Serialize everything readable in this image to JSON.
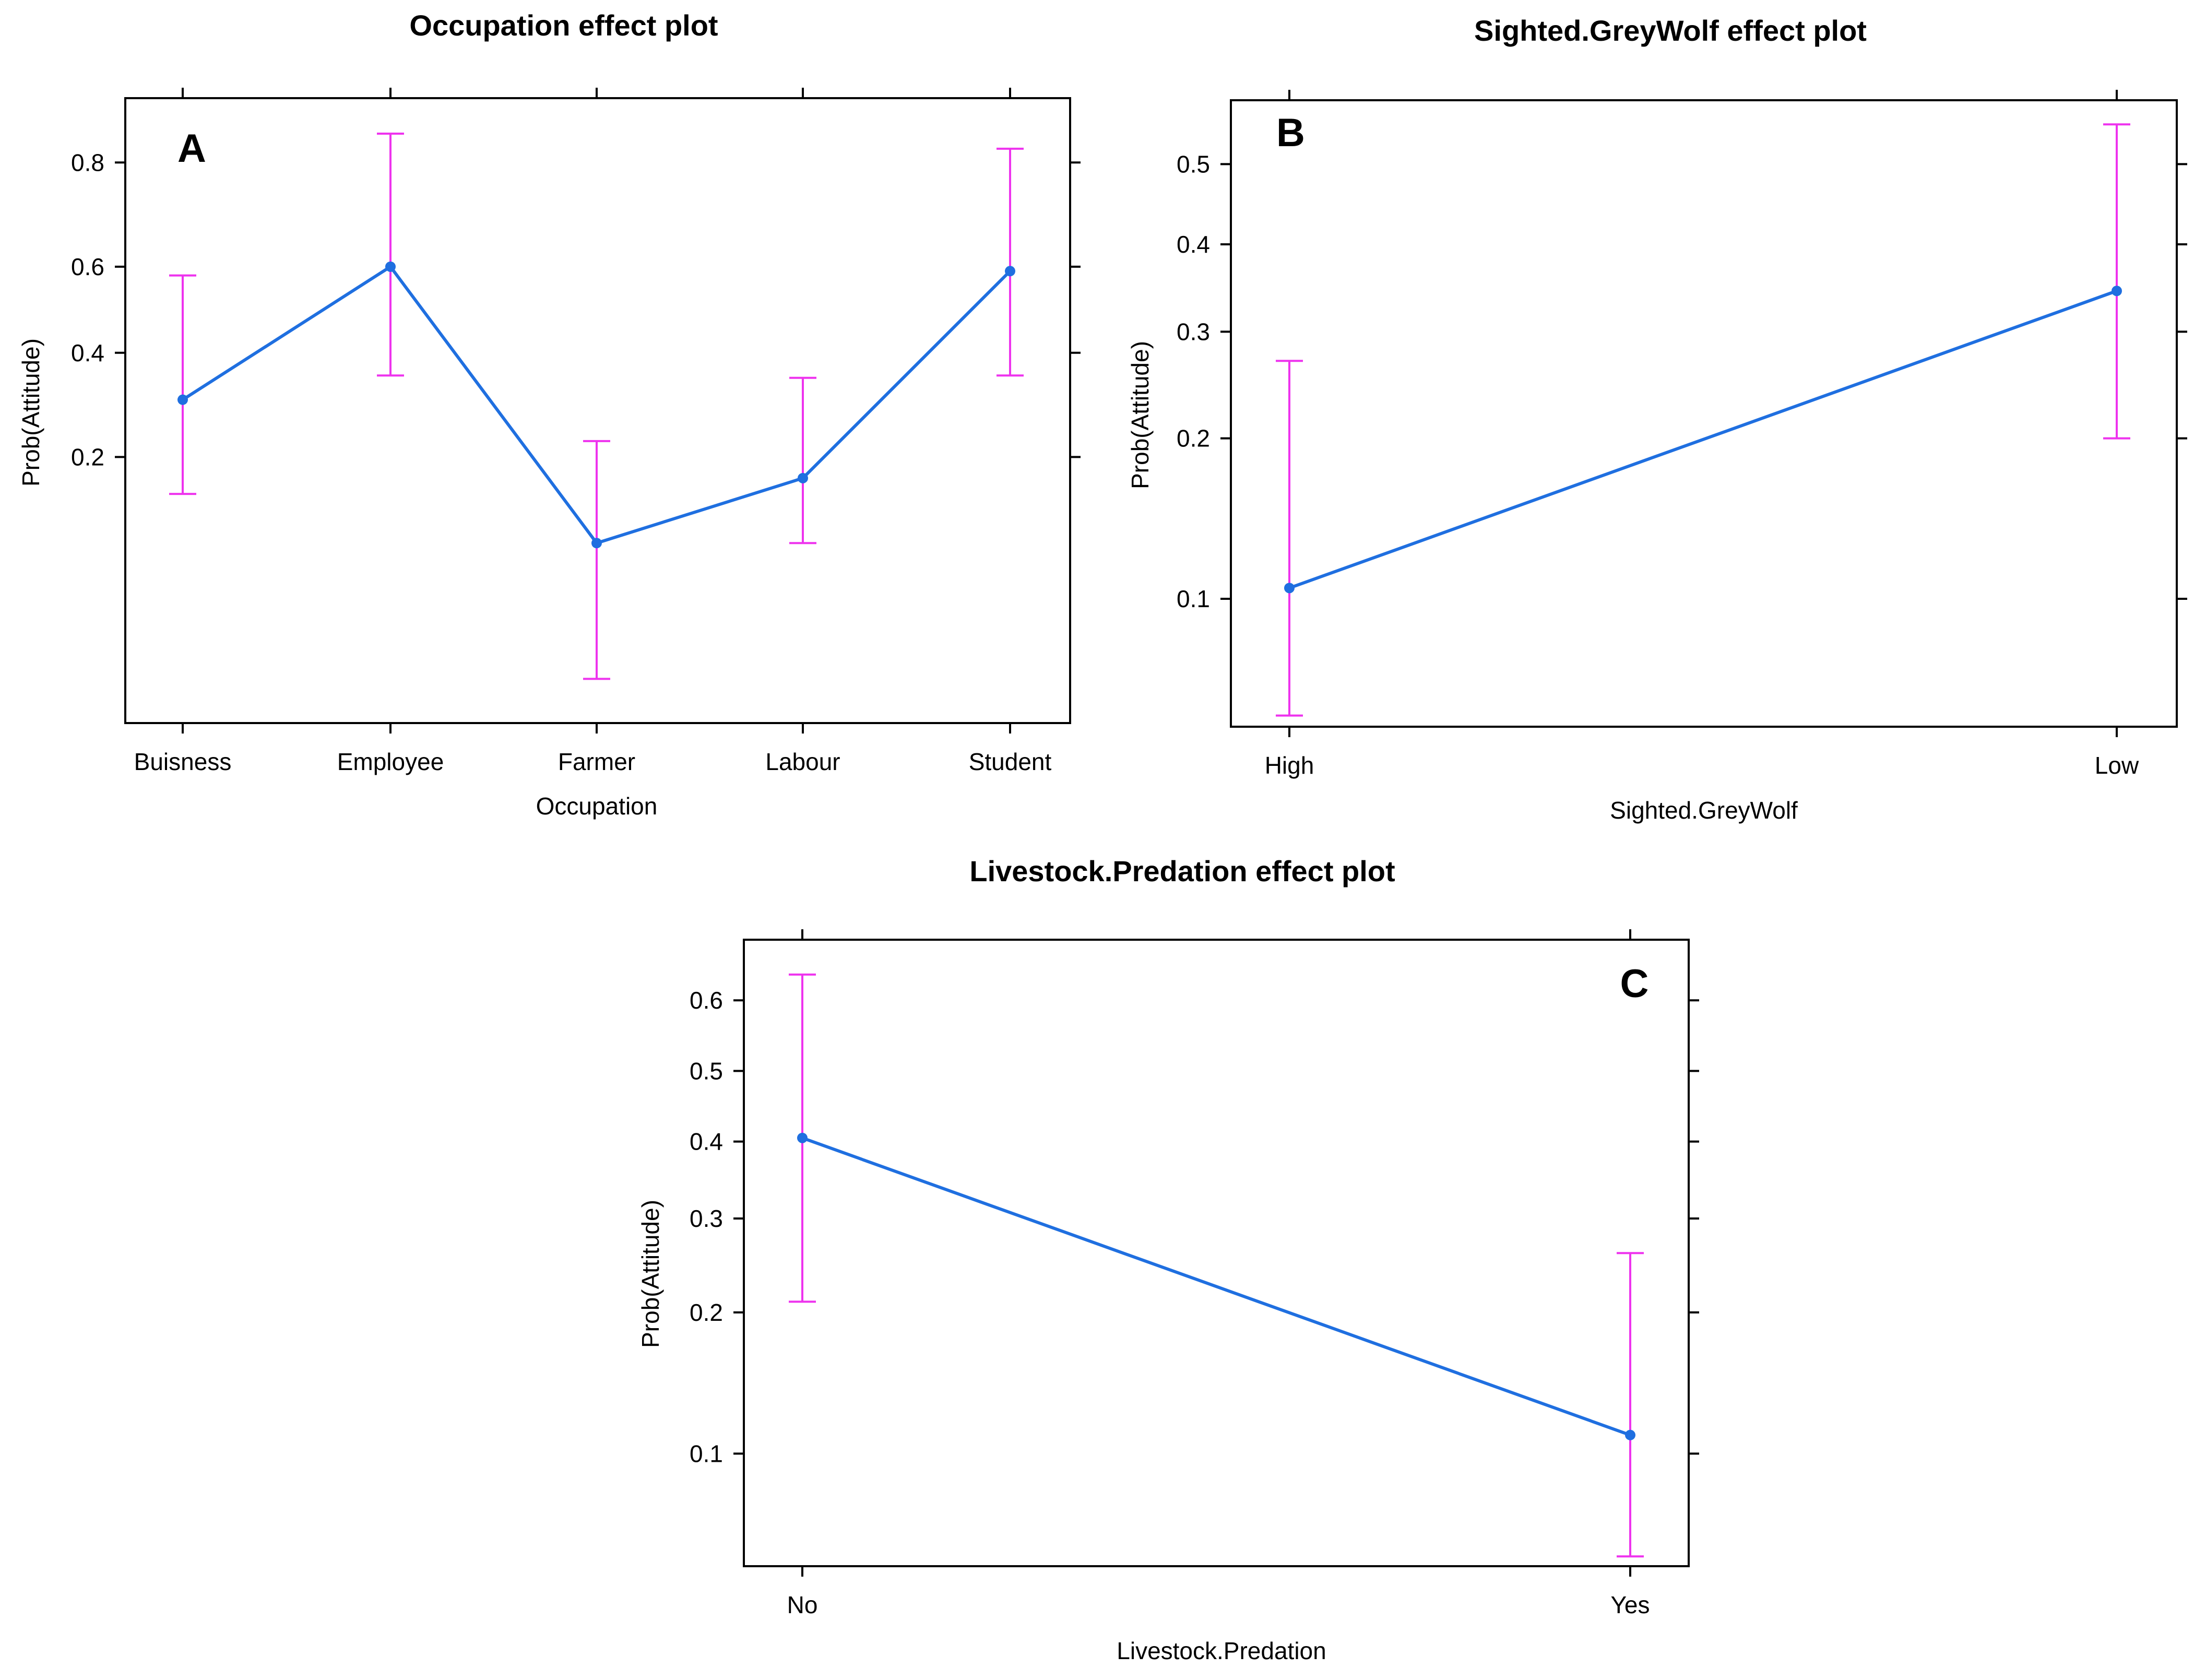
{
  "chart_data": [
    {
      "panel": "A",
      "type": "line",
      "title": "Occupation effect plot",
      "xlabel": "Occupation",
      "ylabel": "Prob(Attitude)",
      "yscale": "logit",
      "yticks": [
        0.2,
        0.4,
        0.6,
        0.8
      ],
      "ytick_labels": [
        "0.2",
        "0.4",
        "0.6",
        "0.8"
      ],
      "ylim": [
        0.02,
        0.88
      ],
      "categories": [
        "Buisness",
        "Employee",
        "Farmer",
        "Labour",
        "Student"
      ],
      "values": [
        0.3,
        0.6,
        0.1,
        0.17,
        0.59
      ],
      "lower": [
        0.15,
        0.35,
        0.03,
        0.1,
        0.35
      ],
      "upper": [
        0.58,
        0.84,
        0.225,
        0.345,
        0.82
      ],
      "line_color": "#1f6fe0",
      "errorbar_color": "#ee33ee"
    },
    {
      "panel": "B",
      "type": "line",
      "title": "Sighted.GreyWolf effect plot",
      "xlabel": "Sighted.GreyWolf",
      "ylabel": "Prob(Attitude)",
      "yscale": "logit",
      "yticks": [
        0.1,
        0.2,
        0.3,
        0.4,
        0.5
      ],
      "ytick_labels": [
        "0.1",
        "0.2",
        "0.3",
        "0.4",
        "0.5"
      ],
      "ylim": [
        0.055,
        0.58
      ],
      "categories": [
        "High",
        "Low"
      ],
      "values": [
        0.105,
        0.345
      ],
      "lower": [
        0.058,
        0.2
      ],
      "upper": [
        0.27,
        0.55
      ],
      "line_color": "#1f6fe0",
      "errorbar_color": "#ee33ee"
    },
    {
      "panel": "C",
      "type": "line",
      "title": "Livestock.Predation effect plot",
      "xlabel": "Livestock.Predation",
      "ylabel": "Prob(Attitude)",
      "yscale": "logit",
      "yticks": [
        0.1,
        0.2,
        0.3,
        0.4,
        0.5,
        0.6
      ],
      "ytick_labels": [
        "0.1",
        "0.2",
        "0.3",
        "0.4",
        "0.5",
        "0.6"
      ],
      "ylim": [
        0.055,
        0.68
      ],
      "categories": [
        "No",
        "Yes"
      ],
      "values": [
        0.405,
        0.11
      ],
      "lower": [
        0.21,
        0.058
      ],
      "upper": [
        0.635,
        0.26
      ],
      "line_color": "#1f6fe0",
      "errorbar_color": "#ee33ee"
    }
  ]
}
